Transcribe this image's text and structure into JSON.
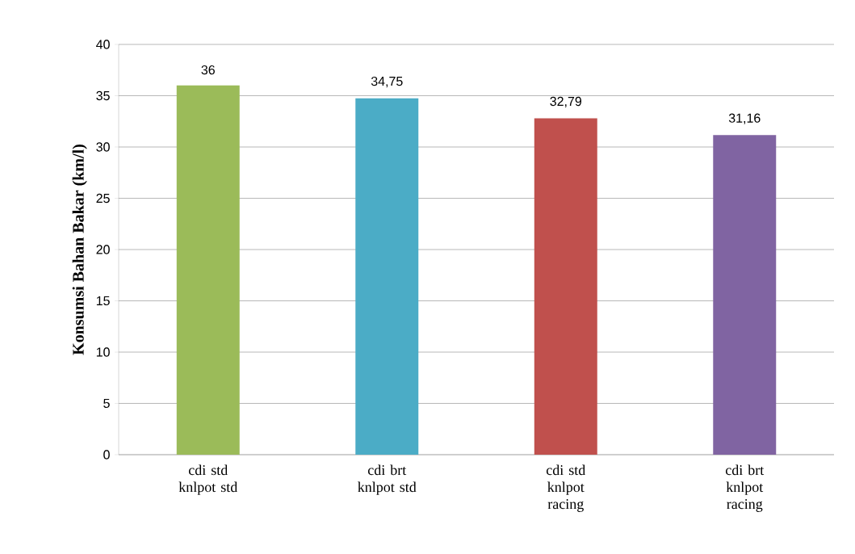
{
  "chart_data": {
    "type": "bar",
    "ylabel": "Konsumsi Bahan Bakar (km/l)",
    "categories": [
      "cdi std knlpot std",
      "cdi brt knlpot std",
      "cdi std knlpot racing",
      "cdi brt knlpot racing"
    ],
    "values": [
      36,
      34.75,
      32.79,
      31.16
    ],
    "value_labels": [
      "36",
      "34,75",
      "32,79",
      "31,16"
    ],
    "colors": [
      "#9bbb59",
      "#4bacc6",
      "#c0504d",
      "#8064a2"
    ],
    "ylim": [
      0,
      40
    ],
    "yticks": [
      0,
      5,
      10,
      15,
      20,
      25,
      30,
      35,
      40
    ],
    "grid": "y"
  }
}
